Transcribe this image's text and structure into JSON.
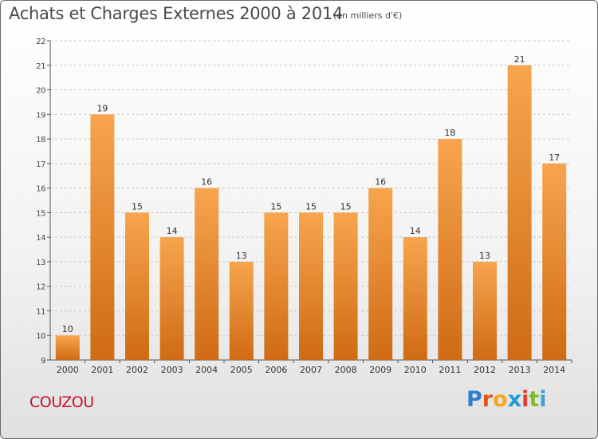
{
  "header": {
    "title": "Achats et Charges Externes 2000 à 2014",
    "subtitle": "(en milliers d'€)"
  },
  "footer": {
    "location": "COUZOU",
    "brand_letters": [
      "P",
      "r",
      "o",
      "x",
      "i",
      "t",
      "i"
    ],
    "brand_colors": [
      "#2f7fd1",
      "#e0581c",
      "#f2a81d",
      "#1f9ad6",
      "#e63b2e",
      "#7bbd2c",
      "#3d9ed8"
    ]
  },
  "colors": {
    "bar_light": "#f7a54e",
    "bar_dark": "#cf6b14",
    "grid": "#c8c8c8",
    "location": "#c8102e"
  },
  "chart_data": {
    "type": "bar",
    "title": "Achats et Charges Externes 2000 à 2014",
    "subtitle": "(en milliers d'€)",
    "categories": [
      "2000",
      "2001",
      "2002",
      "2003",
      "2004",
      "2005",
      "2006",
      "2007",
      "2008",
      "2009",
      "2010",
      "2011",
      "2012",
      "2013",
      "2014"
    ],
    "values": [
      10,
      19,
      15,
      14,
      16,
      13,
      15,
      15,
      15,
      16,
      14,
      18,
      13,
      21,
      17
    ],
    "data_labels": [
      "10",
      "19",
      "15",
      "14",
      "16",
      "13",
      "15",
      "15",
      "15",
      "16",
      "14",
      "18",
      "13",
      "21",
      "17"
    ],
    "ylim": [
      9,
      22
    ],
    "yticks": [
      9,
      10,
      11,
      12,
      13,
      14,
      15,
      16,
      17,
      18,
      19,
      20,
      21,
      22
    ],
    "grid": "horizontal dashed",
    "xlabel": "",
    "ylabel": ""
  }
}
